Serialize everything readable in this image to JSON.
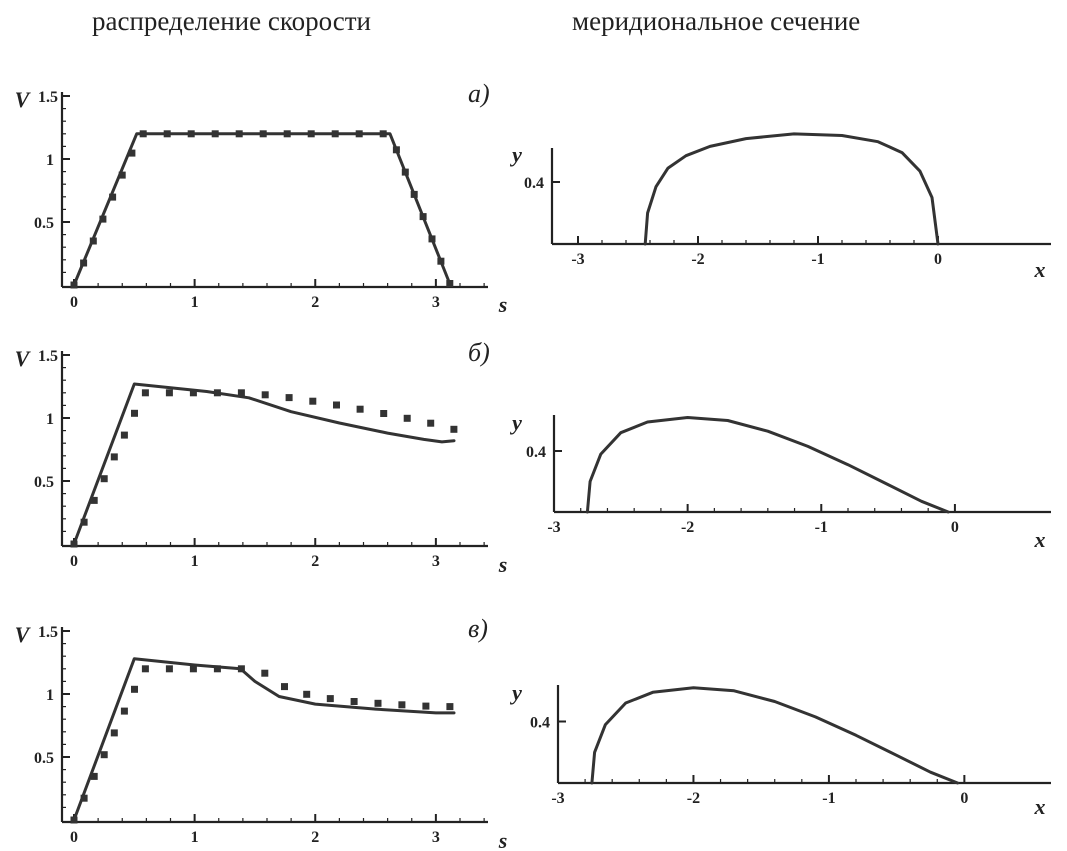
{
  "titles": {
    "left": "распределение скорости",
    "right": "меридиональное сечение"
  },
  "chart_data": [
    {
      "id": "a-velocity",
      "panel_label": "а)",
      "type": "line",
      "xlabel": "s",
      "ylabel": "V",
      "xlim": [
        0,
        3.2
      ],
      "ylim": [
        0,
        1.5
      ],
      "xticks": [
        "0",
        "1",
        "2",
        "3"
      ],
      "yticks": [
        "0.5",
        "1",
        "1.5"
      ],
      "series": [
        {
          "style": "solid",
          "x": [
            0,
            0.52,
            2.62,
            3.12
          ],
          "y": [
            0,
            1.2,
            1.2,
            0
          ]
        },
        {
          "style": "dashed",
          "x": [
            0,
            0.55,
            2.62,
            3.12
          ],
          "y": [
            0,
            1.2,
            1.2,
            0
          ]
        }
      ]
    },
    {
      "id": "a-section",
      "type": "line",
      "xlabel": "x",
      "ylabel": "y",
      "xlim": [
        -3,
        0.45
      ],
      "ylim": [
        0,
        0.8
      ],
      "xticks": [
        "-3",
        "-2",
        "-1",
        "0"
      ],
      "yticks": [
        "0.4"
      ],
      "series": [
        {
          "style": "solid",
          "x": [
            -2.44,
            -2.42,
            -2.35,
            -2.25,
            -2.1,
            -1.9,
            -1.6,
            -1.2,
            -0.8,
            -0.5,
            -0.3,
            -0.15,
            -0.05,
            0.0
          ],
          "y": [
            0,
            0.2,
            0.37,
            0.49,
            0.57,
            0.63,
            0.68,
            0.71,
            0.7,
            0.66,
            0.59,
            0.47,
            0.3,
            0
          ]
        }
      ]
    },
    {
      "id": "b-velocity",
      "panel_label": "б)",
      "type": "line",
      "xlabel": "s",
      "ylabel": "V",
      "xlim": [
        0,
        3.2
      ],
      "ylim": [
        0,
        1.5
      ],
      "xticks": [
        "0",
        "1",
        "2",
        "3"
      ],
      "yticks": [
        "0.5",
        "1",
        "1.5"
      ],
      "series": [
        {
          "style": "solid",
          "x": [
            0,
            0.5,
            0.8,
            1.1,
            1.45,
            1.8,
            2.2,
            2.6,
            2.9,
            3.05,
            3.15
          ],
          "y": [
            0,
            1.27,
            1.24,
            1.21,
            1.16,
            1.05,
            0.96,
            0.88,
            0.83,
            0.81,
            0.82
          ]
        },
        {
          "style": "dashed",
          "x": [
            0,
            0.58,
            1.45,
            1.8,
            2.2,
            2.6,
            3.0,
            3.15
          ],
          "y": [
            0,
            1.2,
            1.2,
            1.16,
            1.1,
            1.03,
            0.95,
            0.91
          ]
        }
      ]
    },
    {
      "id": "b-section",
      "type": "line",
      "xlabel": "x",
      "ylabel": "y",
      "xlim": [
        -3,
        0.3
      ],
      "ylim": [
        0,
        0.8
      ],
      "xticks": [
        "-3",
        "-2",
        "-1",
        "0"
      ],
      "yticks": [
        "0.4"
      ],
      "series": [
        {
          "style": "solid",
          "x": [
            -2.75,
            -2.73,
            -2.65,
            -2.5,
            -2.3,
            -2.0,
            -1.7,
            -1.4,
            -1.1,
            -0.8,
            -0.5,
            -0.25,
            -0.05
          ],
          "y": [
            0,
            0.2,
            0.38,
            0.52,
            0.59,
            0.62,
            0.6,
            0.53,
            0.43,
            0.31,
            0.18,
            0.07,
            0
          ]
        }
      ]
    },
    {
      "id": "c-velocity",
      "panel_label": "в)",
      "type": "line",
      "xlabel": "s",
      "ylabel": "V",
      "xlim": [
        0,
        3.2
      ],
      "ylim": [
        0,
        1.5
      ],
      "xticks": [
        "0",
        "1",
        "2",
        "3"
      ],
      "yticks": [
        "0.5",
        "1",
        "1.5"
      ],
      "series": [
        {
          "style": "solid",
          "x": [
            0,
            0.5,
            1.0,
            1.38,
            1.5,
            1.7,
            2.0,
            2.5,
            3.0,
            3.15
          ],
          "y": [
            0,
            1.28,
            1.23,
            1.2,
            1.1,
            0.98,
            0.92,
            0.88,
            0.85,
            0.85
          ]
        },
        {
          "style": "dashed",
          "x": [
            0,
            0.58,
            1.45,
            1.6,
            1.8,
            2.2,
            2.6,
            3.0,
            3.15
          ],
          "y": [
            0,
            1.2,
            1.2,
            1.16,
            1.02,
            0.95,
            0.92,
            0.9,
            0.9
          ]
        }
      ]
    },
    {
      "id": "c-section",
      "type": "line",
      "xlabel": "x",
      "ylabel": "y",
      "xlim": [
        -3,
        0.3
      ],
      "ylim": [
        0,
        0.8
      ],
      "xticks": [
        "-3",
        "-2",
        "-1",
        "0"
      ],
      "yticks": [
        "0.4"
      ],
      "series": [
        {
          "style": "solid",
          "x": [
            -2.75,
            -2.73,
            -2.65,
            -2.5,
            -2.3,
            -2.0,
            -1.7,
            -1.4,
            -1.1,
            -0.8,
            -0.5,
            -0.25,
            -0.05
          ],
          "y": [
            0,
            0.2,
            0.38,
            0.52,
            0.59,
            0.62,
            0.6,
            0.53,
            0.43,
            0.31,
            0.18,
            0.07,
            0
          ]
        }
      ]
    }
  ]
}
